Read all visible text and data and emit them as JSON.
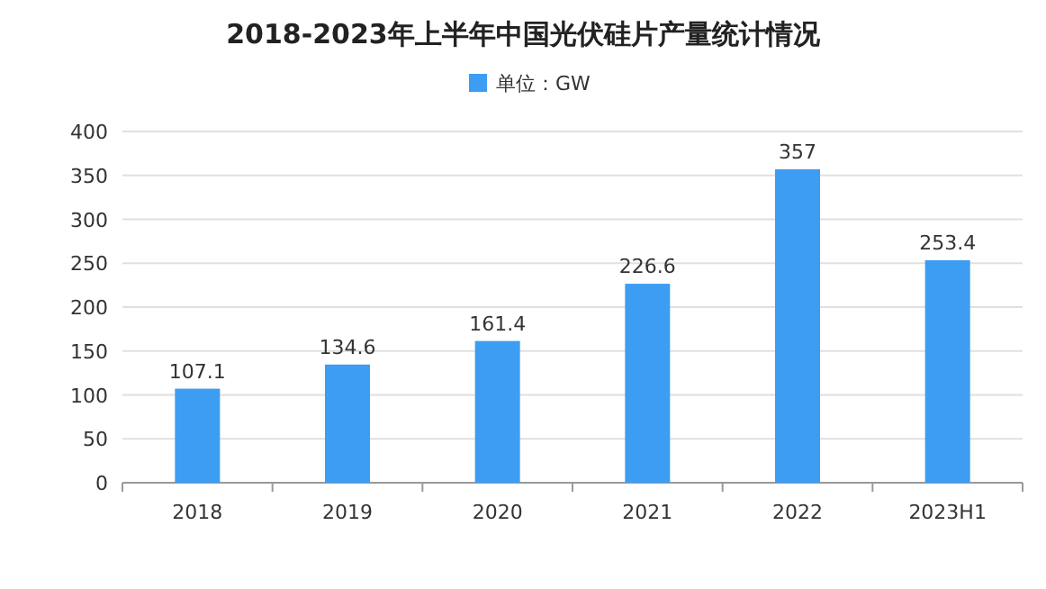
{
  "chart_data": {
    "type": "bar",
    "title": "2018-2023年上半年中国光伏硅片产量统计情况",
    "categories": [
      "2018",
      "2019",
      "2020",
      "2021",
      "2022",
      "2023H1"
    ],
    "series": [
      {
        "name": "单位：GW",
        "color": "#3d9df2",
        "values": [
          107.1,
          134.6,
          161.4,
          226.6,
          357,
          253.4
        ]
      }
    ],
    "ylim": [
      0,
      400
    ],
    "yticks": [
      0,
      50,
      100,
      150,
      200,
      250,
      300,
      350,
      400
    ],
    "grid": "y",
    "legend": "top",
    "data_labels": true
  }
}
